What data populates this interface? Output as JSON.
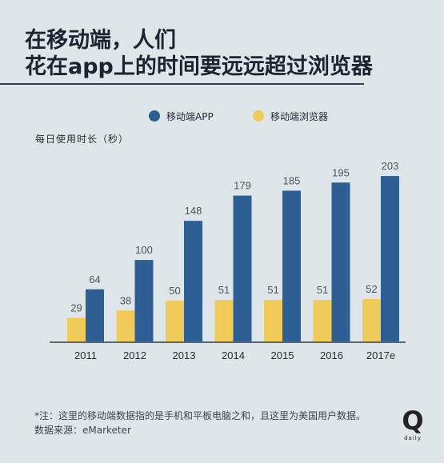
{
  "header": {
    "title_line1": "在移动端，人们",
    "title_line2": "花在app上的时间要远远超过浏览器"
  },
  "colors": {
    "background": "#dfe6e9",
    "app": "#2d5f95",
    "browser": "#f0cb59",
    "text": "#1f2a36"
  },
  "legend": {
    "app": "移动端APP",
    "browser": "移动端浏览器"
  },
  "footer": {
    "note": "*注：这里的移动端数据指的是手机和平板电脑之和，且这里为美国用户数据。",
    "source": "数据来源：eMarketer",
    "brand_letter": "Q",
    "brand_text": "daily"
  },
  "chart_data": {
    "type": "bar",
    "categories": [
      "2011",
      "2012",
      "2013",
      "2014",
      "2015",
      "2016",
      "2017e"
    ],
    "series": [
      {
        "name": "移动端APP",
        "values": [
          64,
          100,
          148,
          179,
          185,
          195,
          203
        ],
        "color": "#2d5f95"
      },
      {
        "name": "移动端浏览器",
        "values": [
          29,
          38,
          50,
          51,
          51,
          51,
          52
        ],
        "color": "#f0cb59"
      }
    ],
    "title": "",
    "xlabel": "",
    "ylabel": "每日使用时长（秒）",
    "ylim": [
      0,
      210
    ]
  }
}
